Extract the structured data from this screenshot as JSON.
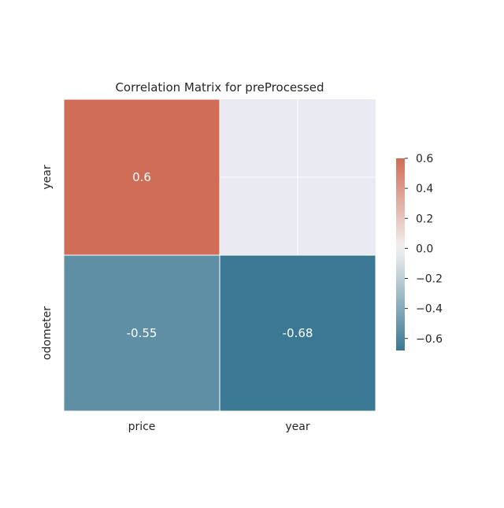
{
  "chart_data": {
    "type": "heatmap",
    "title": "Correlation Matrix for preProcessed",
    "x_categories": [
      "price",
      "year"
    ],
    "y_categories": [
      "year",
      "odometer"
    ],
    "cells": [
      {
        "row": 0,
        "col": 0,
        "value": 0.6,
        "label": "0.6"
      },
      {
        "row": 1,
        "col": 0,
        "value": -0.55,
        "label": "-0.55"
      },
      {
        "row": 1,
        "col": 1,
        "value": -0.68,
        "label": "-0.68"
      }
    ],
    "masked_cells": [
      {
        "row": 0,
        "col": 1
      }
    ],
    "colorbar": {
      "min": -0.68,
      "max": 0.6,
      "ticks": [
        0.6,
        0.4,
        0.2,
        0.0,
        -0.2,
        -0.4,
        -0.6
      ],
      "tick_labels": [
        "0.6",
        "0.4",
        "0.2",
        "0.0",
        "−0.2",
        "−0.4",
        "−0.6"
      ]
    },
    "colors": {
      "negative": "#3b7893",
      "center": "#f2f2f2",
      "positive": "#cc5b42",
      "masked_background": "#eaeaf2"
    }
  }
}
